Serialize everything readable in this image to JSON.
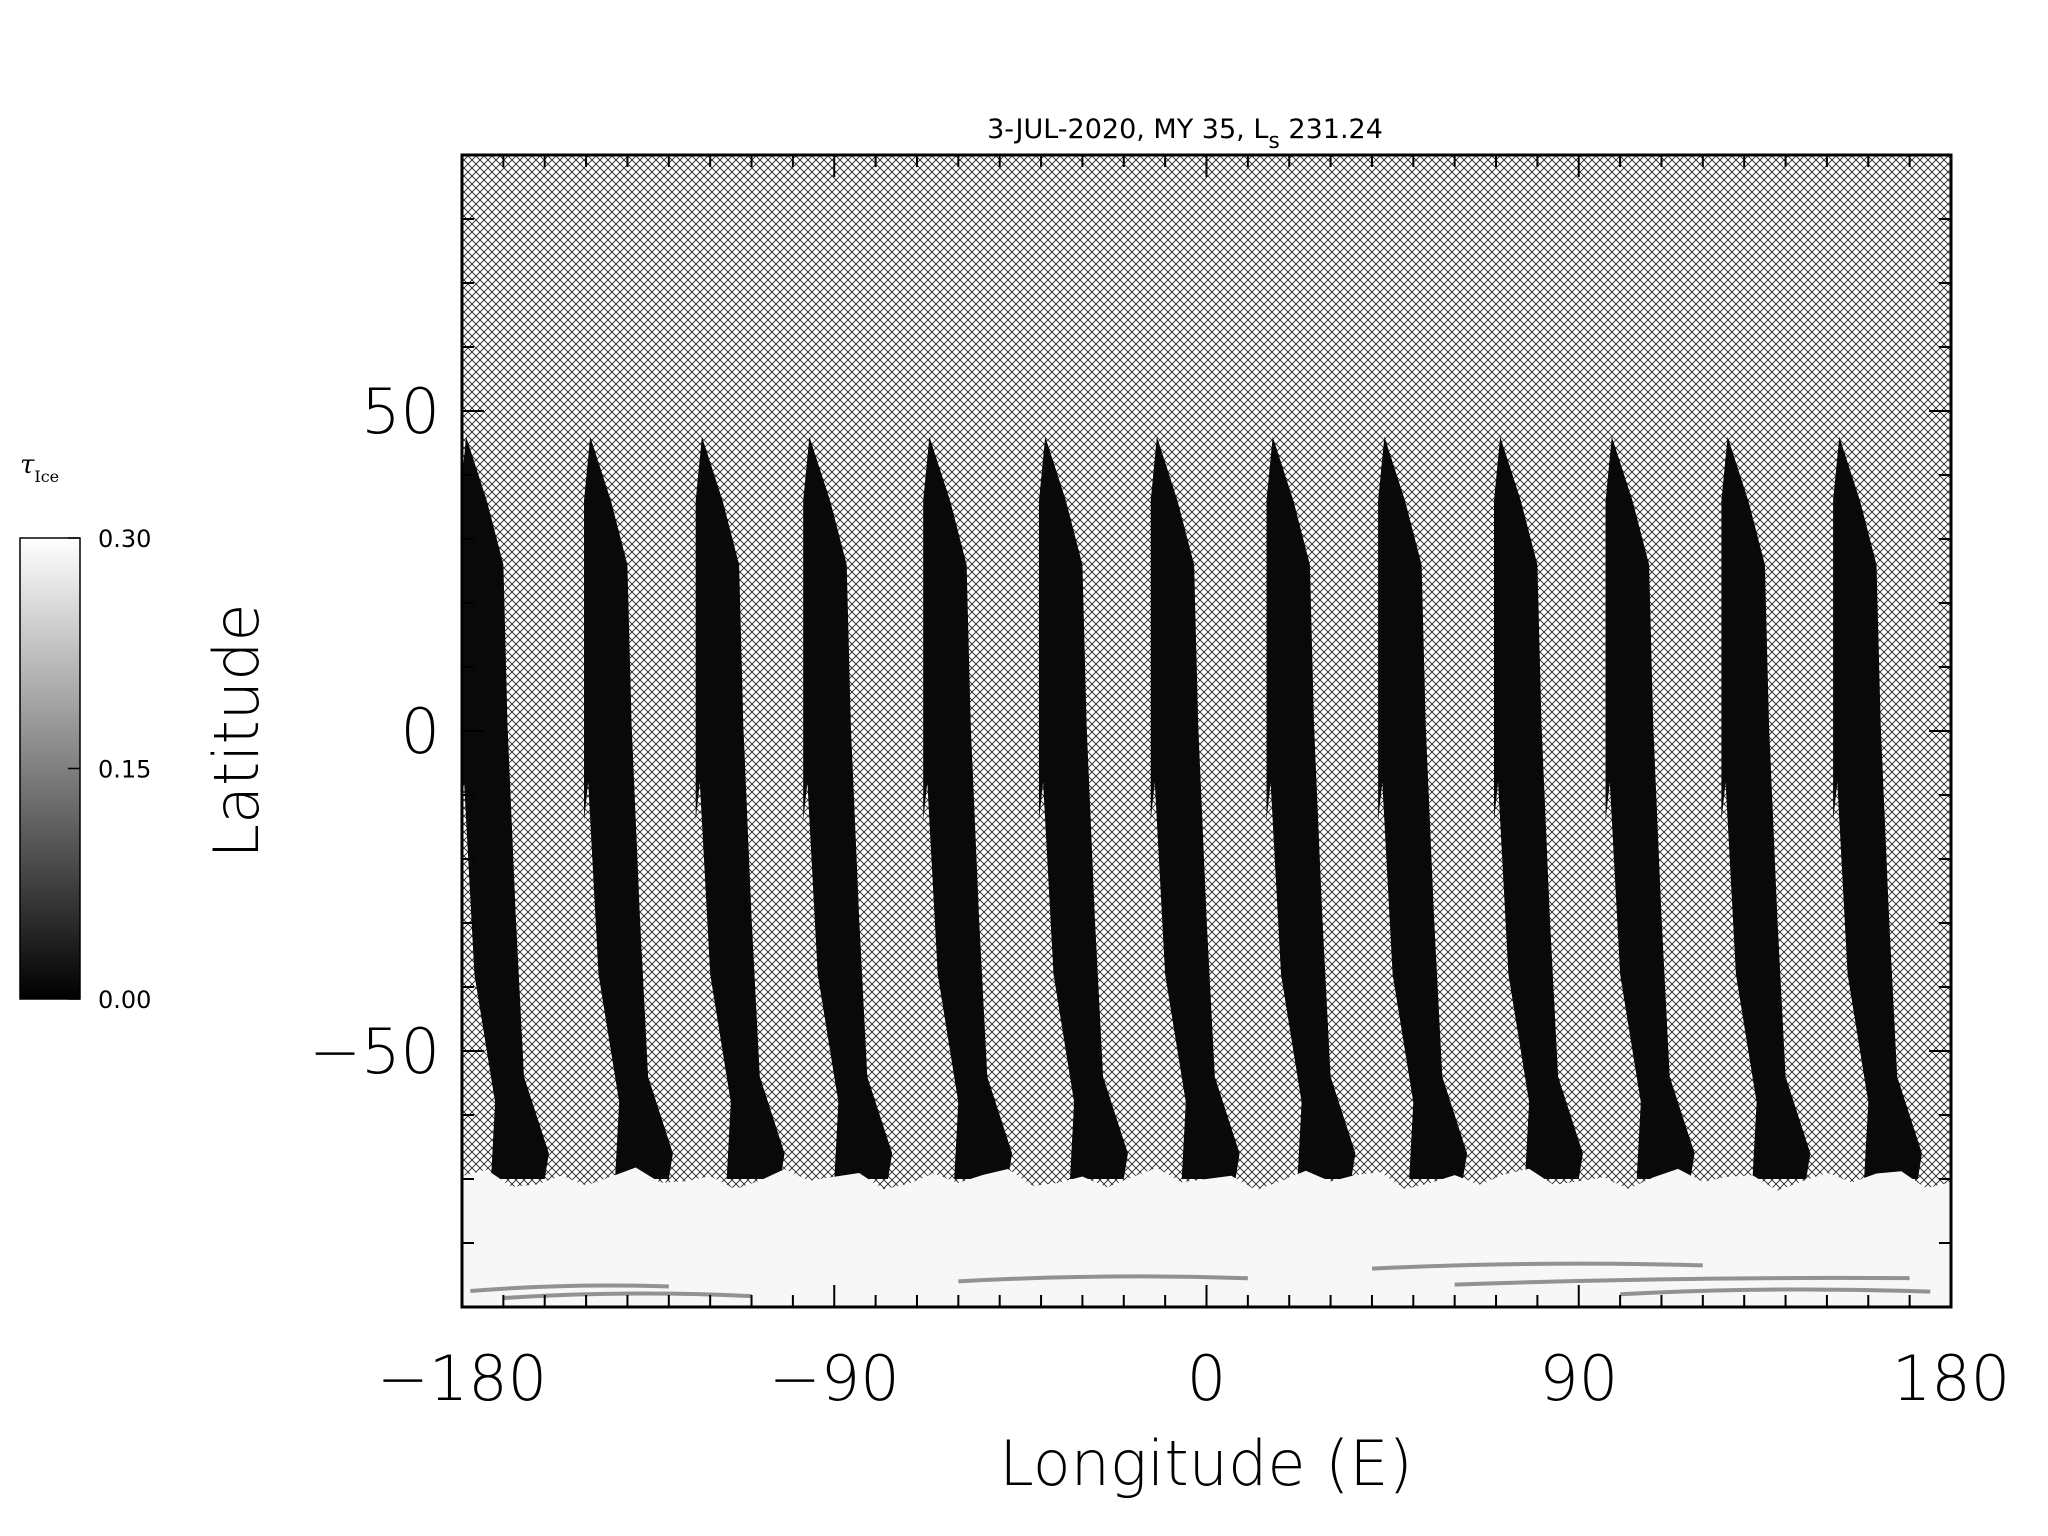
{
  "chart_data": {
    "type": "heatmap",
    "title": "3-JUL-2020, MY 35,  L",
    "title_sub": "s",
    "title_tail": " 231.24",
    "xlabel": "Longitude (E)",
    "ylabel": "Latitude",
    "xlim": [
      -180,
      180
    ],
    "ylim": [
      -90,
      90
    ],
    "x_ticks": [
      -180,
      -90,
      0,
      90,
      180
    ],
    "x_tick_labels": [
      "−180",
      "−90",
      "0",
      "90",
      "180"
    ],
    "y_ticks": [
      -50,
      0,
      50
    ],
    "y_tick_labels": [
      "−50",
      "0",
      "50"
    ],
    "missing_data_fill": "crosshatch",
    "colormap": "grayscale",
    "colorbar": {
      "title": "τ",
      "title_sub": "Ice",
      "range": [
        0.0,
        0.3
      ],
      "ticks": [
        0.0,
        0.15,
        0.3
      ],
      "tick_labels": [
        "0.00",
        "0.15",
        "0.30"
      ]
    },
    "swath_count": 13,
    "swath_lon_start": [
      -180,
      -150,
      -123,
      -97,
      -68,
      -40,
      -13,
      15,
      42,
      70,
      97,
      125,
      152
    ],
    "swath_lat_top": 46,
    "swath_lat_bottom": -68,
    "swath_value": 0.01,
    "polar_cap_lat_top": -70,
    "polar_cap_value": 0.29
  },
  "colors": {
    "background": "#ffffff",
    "axis": "#000000",
    "swath": "#151515",
    "polar_cap": "#f8f8f8",
    "hatch": "#222222"
  }
}
